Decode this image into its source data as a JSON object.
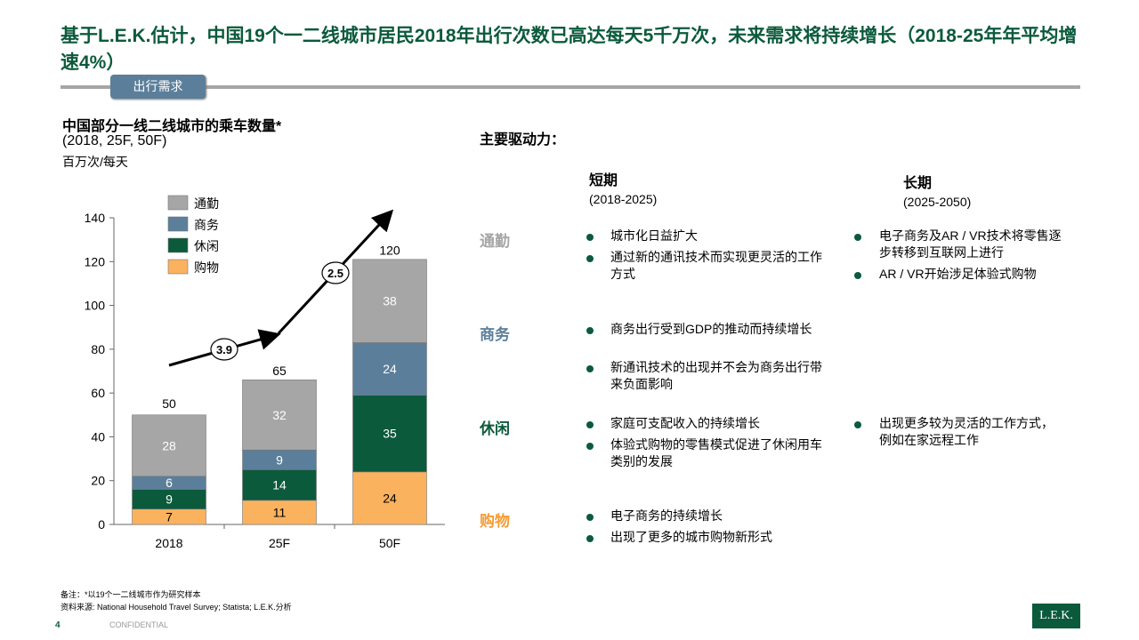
{
  "title": "基于L.E.K.估计，中国19个一二线城市居民2018年出行次数已高达每天5千万次，未来需求将持续增长（2018-25年年平均增速4%）",
  "tag": "出行需求",
  "chart_header": {
    "title": "中国部分一线二线城市的乘车数量*",
    "subtitle": "(2018, 25F, 50F)",
    "unit": "百万次/每天"
  },
  "chart_data": {
    "type": "bar",
    "stacked": true,
    "categories": [
      "2018",
      "25F",
      "50F"
    ],
    "series": [
      {
        "name": "购物",
        "color": "#fbb25e",
        "label_color": "#000",
        "values": [
          7,
          11,
          24
        ]
      },
      {
        "name": "休闲",
        "color": "#0b5a3c",
        "label_color": "#fff",
        "values": [
          9,
          14,
          35
        ]
      },
      {
        "name": "商务",
        "color": "#5b7f9b",
        "label_color": "#fff",
        "values": [
          6,
          9,
          24
        ]
      },
      {
        "name": "通勤",
        "color": "#a6a6a6",
        "label_color": "#fff",
        "values": [
          28,
          32,
          38
        ]
      }
    ],
    "totals": [
      50,
      65,
      120
    ],
    "ylim": [
      0,
      140
    ],
    "yticks": [
      0,
      20,
      40,
      60,
      80,
      100,
      120,
      140
    ],
    "legend": "top-left",
    "growth_labels": [
      {
        "value": "3.9",
        "between": [
          "2018",
          "25F"
        ]
      },
      {
        "value": "2.5",
        "between": [
          "25F",
          "50F"
        ]
      }
    ]
  },
  "drivers": {
    "heading": "主要驱动力：",
    "short": {
      "label": "短期",
      "period": "(2018-2025)"
    },
    "long": {
      "label": "长期",
      "period": "(2025-2050)"
    },
    "rows": [
      {
        "label": "通勤",
        "color": "#a6a6a6",
        "short": [
          "城市化日益扩大",
          "通过新的通讯技术而实现更灵活的工作方式"
        ],
        "long": [
          "电子商务及AR / VR技术将零售逐步转移到互联网上进行",
          "AR / VR开始涉足体验式购物"
        ]
      },
      {
        "label": "商务",
        "color": "#5b7f9b",
        "short": [
          "商务出行受到GDP的推动而持续增长",
          "新通讯技术的出现并不会为商务出行带来负面影响"
        ],
        "long": []
      },
      {
        "label": "休闲",
        "color": "#0b5a3c",
        "short": [
          "家庭可支配收入的持续增长",
          "体验式购物的零售模式促进了休闲用车类别的发展"
        ],
        "long": [
          "出现更多较为灵活的工作方式，例如在家远程工作"
        ]
      },
      {
        "label": "购物",
        "color": "#f39c33",
        "short": [
          "电子商务的持续增长",
          "出现了更多的城市购物新形式"
        ],
        "long": []
      }
    ]
  },
  "footer": {
    "note": "备注：*以19个一二线城市作为研究样本",
    "source": "资料来源: National Household Travel Survey; Statista; L.E.K.分析",
    "page": "4",
    "confidential": "CONFIDENTIAL",
    "logo": "L.E.K."
  }
}
